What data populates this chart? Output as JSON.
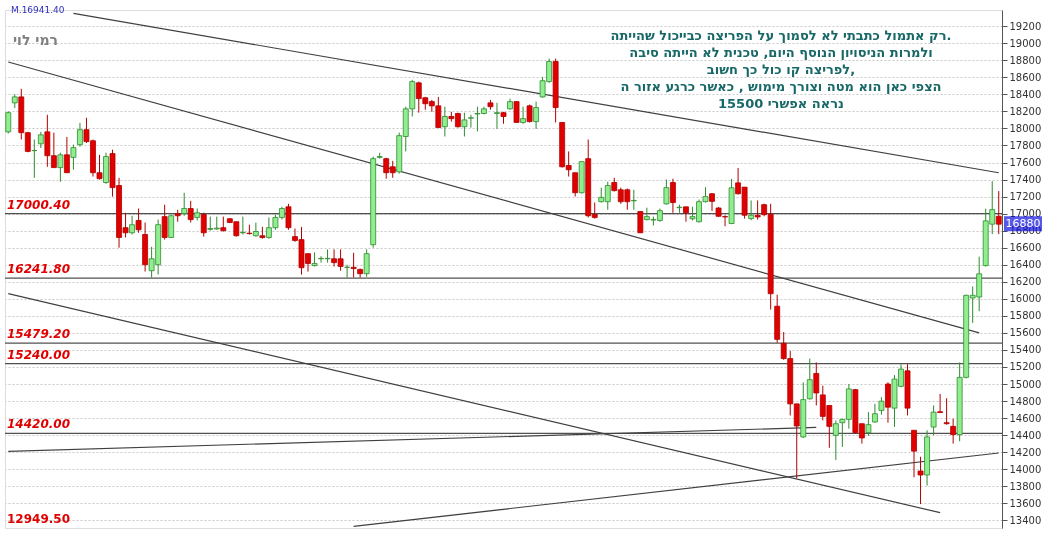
{
  "chart_data": {
    "type": "candlestick",
    "categories": [
      null,
      null,
      null,
      null,
      null,
      null,
      null,
      null,
      null,
      null,
      null,
      null,
      null,
      null,
      null,
      null,
      null,
      null,
      null,
      null,
      null,
      null,
      null,
      null,
      null,
      null,
      null,
      null,
      null,
      null,
      null,
      null,
      null,
      null,
      null,
      null,
      null,
      null,
      null,
      null,
      null,
      null,
      null,
      null,
      null,
      null,
      null,
      null,
      null,
      null,
      null,
      null,
      null,
      null,
      null,
      null,
      null,
      null,
      null,
      null,
      null,
      null,
      null,
      null,
      null,
      null,
      null,
      null,
      null,
      null,
      null,
      null,
      null,
      null,
      null,
      null,
      null,
      null,
      null,
      null,
      null,
      null,
      null,
      null,
      null,
      null,
      null,
      null,
      null,
      null,
      null,
      null,
      null,
      null,
      null,
      null,
      null,
      null,
      null,
      null,
      null,
      null,
      null,
      null,
      null,
      null,
      null,
      null,
      null,
      null,
      null,
      null,
      null,
      null,
      null,
      null,
      null,
      null,
      null,
      null,
      null,
      null,
      null,
      null,
      null,
      null,
      null,
      null,
      null,
      null,
      null,
      null,
      null,
      null,
      null,
      null,
      null,
      null,
      null,
      null,
      null,
      null,
      null,
      null,
      null,
      null,
      null,
      null,
      null,
      null,
      null,
      null,
      null
    ],
    "ohlc": [
      [
        17960,
        18200,
        17940,
        18185
      ],
      [
        18300,
        18400,
        18240,
        18370
      ],
      [
        18370,
        18465,
        17870,
        17950
      ],
      [
        17950,
        17960,
        17720,
        17730
      ],
      [
        17740,
        17870,
        17420,
        17740
      ],
      [
        17820,
        17960,
        17770,
        17925
      ],
      [
        17960,
        18160,
        17550,
        17680
      ],
      [
        17680,
        17950,
        17540,
        17540
      ],
      [
        17540,
        17715,
        17375,
        17690
      ],
      [
        17690,
        17900,
        17480,
        17480
      ],
      [
        17660,
        17810,
        17515,
        17775
      ],
      [
        17810,
        18065,
        17785,
        17985
      ],
      [
        17985,
        18125,
        17830,
        17845
      ],
      [
        17855,
        17870,
        17435,
        17480
      ],
      [
        17480,
        17690,
        17400,
        17410
      ],
      [
        17365,
        17715,
        17350,
        17670
      ],
      [
        17705,
        17750,
        17200,
        17305
      ],
      [
        17330,
        17420,
        16600,
        16720
      ],
      [
        16835,
        17010,
        16720,
        16775
      ],
      [
        16775,
        16975,
        16755,
        16870
      ],
      [
        16920,
        17060,
        16775,
        16810
      ],
      [
        16755,
        16895,
        16320,
        16400
      ],
      [
        16330,
        16610,
        16250,
        16470
      ],
      [
        16400,
        16930,
        16285,
        16870
      ],
      [
        16965,
        17105,
        16695,
        16720
      ],
      [
        16720,
        16990,
        16720,
        16975
      ],
      [
        17000,
        17045,
        16905,
        16975
      ],
      [
        17000,
        17245,
        16975,
        17060
      ],
      [
        17060,
        17150,
        16895,
        16930
      ],
      [
        16955,
        17060,
        16920,
        17010
      ],
      [
        16990,
        17010,
        16730,
        16775
      ],
      [
        16815,
        16965,
        16800,
        16825
      ],
      [
        16820,
        16965,
        16810,
        16830
      ],
      [
        16835,
        16965,
        16790,
        16800
      ],
      [
        16940,
        16945,
        16890,
        16895
      ],
      [
        16905,
        16905,
        16730,
        16740
      ],
      [
        16775,
        16965,
        16755,
        16780
      ],
      [
        16770,
        16870,
        16755,
        16765
      ],
      [
        16740,
        16895,
        16730,
        16790
      ],
      [
        16740,
        16845,
        16705,
        16720
      ],
      [
        16720,
        16955,
        16705,
        16835
      ],
      [
        16835,
        16990,
        16810,
        16955
      ],
      [
        16955,
        17080,
        16930,
        17060
      ],
      [
        17080,
        17115,
        16810,
        16835
      ],
      [
        16730,
        16825,
        16670,
        16685
      ],
      [
        16695,
        16845,
        16285,
        16365
      ],
      [
        16530,
        16530,
        16320,
        16415
      ],
      [
        16390,
        16545,
        16380,
        16415
      ],
      [
        16470,
        16500,
        16425,
        16475
      ],
      [
        16470,
        16580,
        16425,
        16475
      ],
      [
        16470,
        16580,
        16380,
        16425
      ],
      [
        16470,
        16580,
        16330,
        16380
      ],
      [
        16370,
        16400,
        16250,
        16370
      ],
      [
        16370,
        16540,
        16250,
        16355
      ],
      [
        16345,
        16355,
        16250,
        16295
      ],
      [
        16295,
        16580,
        16260,
        16530
      ],
      [
        16635,
        17670,
        16600,
        17645
      ],
      [
        17660,
        17715,
        17645,
        17670
      ],
      [
        17645,
        17655,
        17410,
        17480
      ],
      [
        17550,
        17620,
        17420,
        17480
      ],
      [
        17490,
        17950,
        17470,
        17915
      ],
      [
        17905,
        18255,
        17730,
        18230
      ],
      [
        18230,
        18570,
        18140,
        18550
      ],
      [
        18535,
        18550,
        18185,
        18350
      ],
      [
        18360,
        18370,
        18220,
        18290
      ],
      [
        18315,
        18335,
        18195,
        18265
      ],
      [
        18265,
        18370,
        18010,
        18010
      ],
      [
        18020,
        18255,
        17905,
        18140
      ],
      [
        18140,
        18195,
        18080,
        18115
      ],
      [
        18175,
        18185,
        18010,
        18020
      ],
      [
        18020,
        18185,
        17905,
        18100
      ],
      [
        18120,
        18160,
        18010,
        18125
      ],
      [
        18170,
        18255,
        17965,
        18175
      ],
      [
        18175,
        18255,
        18165,
        18230
      ],
      [
        18300,
        18335,
        18220,
        18255
      ],
      [
        18175,
        18300,
        17995,
        18185
      ],
      [
        18185,
        18195,
        18055,
        18140
      ],
      [
        18230,
        18350,
        18220,
        18315
      ],
      [
        18315,
        18315,
        18070,
        18070
      ],
      [
        18070,
        18255,
        18055,
        18115
      ],
      [
        18265,
        18280,
        18070,
        18080
      ],
      [
        18080,
        18315,
        17995,
        18245
      ],
      [
        18370,
        18605,
        18360,
        18560
      ],
      [
        18550,
        18820,
        18535,
        18785
      ],
      [
        18785,
        18820,
        18070,
        18245
      ],
      [
        18070,
        18070,
        17540,
        17550
      ],
      [
        17565,
        17730,
        17435,
        17515
      ],
      [
        17480,
        17480,
        17200,
        17245
      ],
      [
        17245,
        17610,
        17235,
        17610
      ],
      [
        17645,
        17870,
        16955,
        16975
      ],
      [
        16990,
        17130,
        16940,
        16955
      ],
      [
        17140,
        17305,
        17130,
        17190
      ],
      [
        17140,
        17375,
        17045,
        17330
      ],
      [
        17365,
        17420,
        17260,
        17270
      ],
      [
        17280,
        17305,
        17115,
        17140
      ],
      [
        17280,
        17295,
        17045,
        17140
      ],
      [
        17150,
        17280,
        17045,
        17155
      ],
      [
        17025,
        17025,
        16775,
        16775
      ],
      [
        16930,
        17070,
        16920,
        16965
      ],
      [
        16925,
        16965,
        16860,
        16930
      ],
      [
        16920,
        17060,
        16905,
        17035
      ],
      [
        17115,
        17400,
        17105,
        17305
      ],
      [
        17365,
        17410,
        17010,
        17130
      ],
      [
        17070,
        17105,
        17010,
        17075
      ],
      [
        17080,
        17080,
        16905,
        17010
      ],
      [
        16940,
        17080,
        16920,
        16965
      ],
      [
        16905,
        17165,
        16895,
        17140
      ],
      [
        17140,
        17310,
        17130,
        17200
      ],
      [
        17233,
        17241,
        17031,
        17144
      ],
      [
        17066,
        17078,
        16961,
        16969
      ],
      [
        16965,
        16981,
        16852,
        16961
      ],
      [
        16884,
        17408,
        16876,
        17303
      ],
      [
        17361,
        17536,
        17225,
        17233
      ],
      [
        17311,
        17311,
        16942,
        16981
      ],
      [
        16942,
        17155,
        16922,
        16981
      ],
      [
        16981,
        17155,
        16930,
        16961
      ],
      [
        17105,
        17116,
        16969,
        16988
      ],
      [
        16992,
        17116,
        15874,
        16060
      ],
      [
        15913,
        16049,
        15485,
        15524
      ],
      [
        15478,
        15610,
        15284,
        15299
      ],
      [
        15299,
        15389,
        14631,
        14767
      ],
      [
        14767,
        14767,
        13894,
        14507
      ],
      [
        14379,
        15020,
        14367,
        14817
      ],
      [
        14826,
        15299,
        14818,
        15051
      ],
      [
        15124,
        15253,
        14748,
        14895
      ],
      [
        14872,
        14981,
        14573,
        14620
      ],
      [
        14748,
        14748,
        14251,
        14503
      ],
      [
        14398,
        14573,
        14107,
        14534
      ],
      [
        14546,
        14593,
        14262,
        14585
      ],
      [
        14585,
        15000,
        14476,
        14942
      ],
      [
        14934,
        14942,
        14418,
        14429
      ],
      [
        14534,
        14534,
        14301,
        14367
      ],
      [
        14429,
        14670,
        14391,
        14523
      ],
      [
        14554,
        14767,
        14546,
        14651
      ],
      [
        14690,
        14845,
        14639,
        14798
      ],
      [
        15000,
        15020,
        14546,
        14728
      ],
      [
        14717,
        15105,
        14496,
        15058
      ],
      [
        14973,
        15233,
        14962,
        15175
      ],
      [
        15155,
        15233,
        14631,
        14717
      ],
      [
        14457,
        14457,
        13906,
        14212
      ],
      [
        13979,
        14146,
        13591,
        13932
      ],
      [
        13932,
        14457,
        13808,
        14379
      ],
      [
        14495,
        14748,
        14398,
        14670
      ],
      [
        14675,
        14884,
        14662,
        14665
      ],
      [
        14546,
        14833,
        14523,
        14534
      ],
      [
        14503,
        14593,
        14301,
        14406
      ],
      [
        14406,
        15253,
        14328,
        15078
      ],
      [
        15078,
        16049,
        15066,
        16041
      ],
      [
        16010,
        16146,
        15718,
        16041
      ],
      [
        16021,
        16495,
        15855,
        16293
      ],
      [
        16390,
        17058,
        16379,
        16915
      ],
      [
        16876,
        17381,
        16759,
        17047
      ],
      [
        16969,
        17264,
        16759,
        16876
      ]
    ],
    "series": [
      {
        "type": "line",
        "color": "#404040",
        "values": [
          null,
          null,
          null,
          null,
          null,
          null,
          null,
          null,
          null,
          null,
          19350,
          null,
          null,
          null,
          null,
          null,
          null,
          null,
          null,
          null,
          null,
          null,
          null,
          null,
          null,
          null,
          null,
          null,
          null,
          null,
          null,
          null,
          null,
          null,
          null,
          null,
          null,
          null,
          null,
          null,
          null,
          null,
          null,
          null,
          null,
          null,
          null,
          null,
          null,
          null,
          null,
          null,
          null,
          null,
          null,
          null,
          null,
          null,
          null,
          null,
          null,
          null,
          null,
          null,
          null,
          null,
          null,
          null,
          null,
          null,
          null,
          null,
          null,
          null,
          null,
          null,
          null,
          null,
          null,
          null,
          null,
          null,
          null,
          null,
          null,
          null,
          null,
          null,
          null,
          null,
          null,
          null,
          null,
          null,
          null,
          null,
          null,
          null,
          null,
          null,
          null,
          null,
          null,
          null,
          null,
          null,
          null,
          null,
          null,
          null,
          null,
          null,
          null,
          null,
          null,
          null,
          null,
          null,
          null,
          null,
          null,
          null,
          null,
          null,
          null,
          null,
          null,
          null,
          null,
          null,
          null,
          null,
          null,
          null,
          null,
          null,
          null,
          null,
          null,
          null,
          null,
          null,
          null,
          null,
          null,
          null,
          null,
          null,
          null,
          null,
          null,
          null,
          17480
        ]
      },
      {
        "type": "line",
        "color": "#404040",
        "values": [
          18780,
          null,
          null,
          null,
          null,
          null,
          null,
          null,
          null,
          null,
          null,
          null,
          null,
          null,
          null,
          null,
          null,
          null,
          null,
          null,
          null,
          null,
          null,
          null,
          null,
          null,
          null,
          null,
          null,
          null,
          null,
          null,
          null,
          null,
          null,
          null,
          null,
          null,
          null,
          null,
          null,
          null,
          null,
          null,
          null,
          null,
          null,
          null,
          null,
          null,
          null,
          null,
          null,
          null,
          null,
          null,
          null,
          null,
          null,
          null,
          null,
          null,
          null,
          null,
          null,
          null,
          null,
          null,
          null,
          null,
          null,
          null,
          null,
          null,
          null,
          null,
          null,
          null,
          null,
          null,
          null,
          null,
          null,
          null,
          null,
          null,
          null,
          null,
          null,
          null,
          null,
          null,
          null,
          null,
          null,
          null,
          null,
          null,
          null,
          null,
          null,
          null,
          null,
          null,
          null,
          null,
          null,
          null,
          null,
          null,
          null,
          null,
          null,
          null,
          null,
          null,
          null,
          null,
          null,
          null,
          null,
          null,
          null,
          null,
          null,
          null,
          null,
          null,
          null,
          null,
          null,
          null,
          null,
          null,
          null,
          null,
          null,
          null,
          null,
          null,
          null,
          null,
          null,
          null,
          null,
          null,
          null,
          null,
          null,
          15600,
          null,
          null,
          null
        ]
      },
      {
        "type": "line",
        "color": "#404040",
        "values": [
          16060,
          null,
          null,
          null,
          null,
          null,
          null,
          null,
          null,
          null,
          null,
          null,
          null,
          null,
          null,
          null,
          null,
          null,
          null,
          null,
          null,
          null,
          null,
          null,
          null,
          null,
          null,
          null,
          null,
          null,
          null,
          null,
          null,
          null,
          null,
          null,
          null,
          null,
          null,
          null,
          null,
          null,
          null,
          null,
          null,
          null,
          null,
          null,
          null,
          null,
          null,
          null,
          null,
          null,
          null,
          null,
          null,
          null,
          null,
          null,
          null,
          null,
          null,
          null,
          null,
          null,
          null,
          null,
          null,
          null,
          null,
          null,
          null,
          null,
          null,
          null,
          null,
          null,
          null,
          null,
          null,
          null,
          null,
          null,
          null,
          null,
          null,
          null,
          null,
          null,
          null,
          null,
          null,
          null,
          null,
          null,
          null,
          null,
          null,
          null,
          null,
          null,
          null,
          null,
          null,
          null,
          null,
          null,
          null,
          null,
          null,
          null,
          null,
          null,
          null,
          null,
          null,
          null,
          null,
          null,
          null,
          null,
          null,
          null,
          null,
          null,
          null,
          null,
          null,
          null,
          null,
          null,
          null,
          null,
          null,
          null,
          null,
          null,
          null,
          null,
          null,
          null,
          null,
          13490,
          null,
          null,
          null,
          null,
          null,
          null,
          null,
          null,
          null
        ]
      },
      {
        "type": "line",
        "color": "#404040",
        "values": [
          14210,
          null,
          null,
          null,
          null,
          null,
          null,
          null,
          null,
          null,
          null,
          null,
          null,
          null,
          null,
          null,
          null,
          null,
          null,
          null,
          null,
          null,
          null,
          null,
          null,
          null,
          null,
          null,
          null,
          null,
          null,
          null,
          null,
          null,
          null,
          null,
          null,
          null,
          null,
          null,
          null,
          null,
          null,
          null,
          null,
          null,
          null,
          null,
          null,
          null,
          null,
          null,
          null,
          null,
          null,
          null,
          null,
          null,
          null,
          null,
          null,
          null,
          null,
          null,
          null,
          null,
          null,
          null,
          null,
          null,
          null,
          null,
          null,
          null,
          null,
          null,
          null,
          null,
          null,
          null,
          null,
          null,
          null,
          null,
          null,
          null,
          null,
          null,
          null,
          null,
          null,
          null,
          null,
          null,
          null,
          null,
          null,
          null,
          null,
          null,
          null,
          null,
          null,
          null,
          null,
          null,
          null,
          null,
          null,
          null,
          null,
          null,
          null,
          null,
          null,
          null,
          null,
          null,
          null,
          null,
          null,
          null,
          null,
          null,
          14490,
          null,
          null,
          null,
          null,
          null,
          null,
          null,
          null,
          null,
          null,
          null,
          null,
          null,
          null,
          null,
          null,
          null,
          null,
          null,
          null,
          null,
          null,
          null,
          null,
          null,
          null,
          null,
          null
        ]
      },
      {
        "type": "line",
        "color": "#404040",
        "values": [
          null,
          null,
          null,
          null,
          null,
          null,
          null,
          null,
          null,
          null,
          null,
          null,
          null,
          null,
          null,
          null,
          null,
          null,
          null,
          null,
          null,
          null,
          null,
          null,
          null,
          null,
          null,
          null,
          null,
          null,
          null,
          null,
          null,
          null,
          null,
          null,
          null,
          null,
          null,
          null,
          null,
          null,
          null,
          null,
          null,
          null,
          null,
          null,
          null,
          null,
          null,
          null,
          null,
          13330,
          null,
          null,
          null,
          null,
          null,
          null,
          null,
          null,
          null,
          null,
          null,
          null,
          null,
          null,
          null,
          null,
          null,
          null,
          null,
          null,
          null,
          null,
          null,
          null,
          null,
          null,
          null,
          null,
          null,
          null,
          null,
          null,
          null,
          null,
          null,
          null,
          null,
          null,
          null,
          null,
          null,
          null,
          null,
          null,
          null,
          null,
          null,
          null,
          null,
          null,
          null,
          null,
          null,
          null,
          null,
          null,
          null,
          null,
          null,
          null,
          null,
          null,
          null,
          null,
          null,
          null,
          null,
          null,
          null,
          null,
          null,
          null,
          null,
          null,
          null,
          null,
          null,
          null,
          null,
          null,
          null,
          null,
          null,
          null,
          null,
          null,
          null,
          null,
          null,
          null,
          null,
          null,
          null,
          null,
          null,
          null,
          null,
          null,
          14190
        ]
      }
    ],
    "ylim": [
      13310,
      19390
    ],
    "yticks": [
      13400,
      13600,
      13800,
      14000,
      14200,
      14400,
      14600,
      14800,
      15000,
      15200,
      15400,
      15600,
      15800,
      16000,
      16200,
      16400,
      16600,
      16800,
      17000,
      17200,
      17400,
      17600,
      17800,
      18000,
      18200,
      18400,
      18600,
      18800,
      19000,
      19200
    ],
    "tick_labels": "y",
    "grid": "y",
    "ref_lines": [
      {
        "axis": "y",
        "value": 17000.4,
        "label": "17000.40",
        "color": "#505050"
      },
      {
        "axis": "y",
        "value": 16241.8,
        "label": "16241.80",
        "color": "#505050"
      },
      {
        "axis": "y",
        "value": 15479.2,
        "label": "15479.20",
        "color": "#505050"
      },
      {
        "axis": "y",
        "value": 15240.0,
        "label": "15240.00",
        "color": "#505050"
      },
      {
        "axis": "y",
        "value": 14420.0,
        "label": "14420.00",
        "color": "#505050"
      }
    ],
    "annotations": [
      "M.16941.40",
      "רמי לוי",
      "רק אתמול כתבתי לא לסמוך על הפריצה כבייכול שהייתה.\nולמרות הניסויון הנוסף היום, טכנית לא הייתה סיבה\nלפריצה קו כול כך חשוב,\nהצפי כאן הוא מטה וצורך מימוש , כאשר כרגע אזור ה\n15500 נראה אפשרי",
      "12949.50",
      {
        "text": "16880",
        "y": 16880
      }
    ]
  }
}
